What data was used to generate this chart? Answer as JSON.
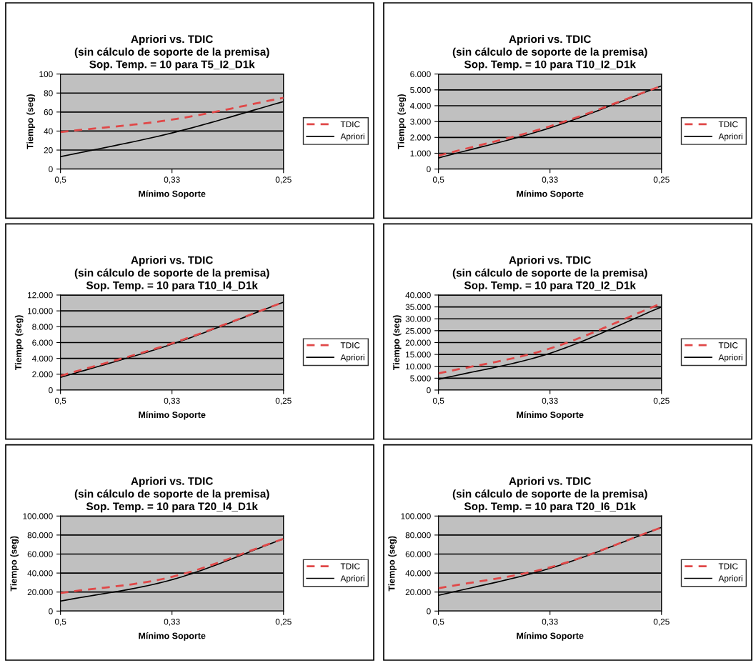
{
  "chart_data": [
    {
      "type": "line",
      "title": "Apriori vs. TDIC\n(sin cálculo de soporte de la premisa)\nSop. Temp. = 10 para T5_I2_D1k",
      "xlabel": "Mínimo Soporte",
      "ylabel": "Tiempo (seg)",
      "categories": [
        "0,5",
        "0,33",
        "0,25"
      ],
      "ylim": [
        0,
        100
      ],
      "yticks": [
        0,
        20,
        40,
        60,
        80,
        100
      ],
      "grid": "y",
      "legend": "right",
      "series": [
        {
          "name": "TDIC",
          "color": "#e04848",
          "line_style": "dashed",
          "values": [
            39,
            52,
            75
          ]
        },
        {
          "name": "Apriori",
          "color": "#000000",
          "line_style": "solid",
          "values": [
            13,
            38,
            71
          ]
        }
      ]
    },
    {
      "type": "line",
      "title": "Apriori vs. TDIC\n(sin cálculo de soporte de la premisa)\nSop. Temp. = 10 para T10_I2_D1k",
      "xlabel": "Mínimo Soporte",
      "ylabel": "Tiempo (seg)",
      "categories": [
        "0,5",
        "0,33",
        "0,25"
      ],
      "ylim": [
        0,
        6000
      ],
      "yticks": [
        0,
        {
          "value": 1000,
          "label": "1.000"
        },
        {
          "value": 2000,
          "label": "2.000"
        },
        {
          "value": 3000,
          "label": "3.000"
        },
        {
          "value": 4000,
          "label": "4.000"
        },
        {
          "value": 5000,
          "label": "5.000"
        },
        {
          "value": 6000,
          "label": "6.000"
        }
      ],
      "grid": "y",
      "legend": "right",
      "series": [
        {
          "name": "TDIC",
          "color": "#e04848",
          "line_style": "dashed",
          "values": [
            850,
            2700,
            5250
          ]
        },
        {
          "name": "Apriori",
          "color": "#000000",
          "line_style": "solid",
          "values": [
            700,
            2600,
            5250
          ]
        }
      ]
    },
    {
      "type": "line",
      "title": "Apriori vs. TDIC\n(sin cálculo de soporte de la premisa)\nSop. Temp. = 10 para T10_I4_D1k",
      "xlabel": "Mínimo Soporte",
      "ylabel": "Tiempo (seg)",
      "categories": [
        "0,5",
        "0,33",
        "0,25"
      ],
      "ylim": [
        0,
        12000
      ],
      "yticks": [
        0,
        {
          "value": 2000,
          "label": "2.000"
        },
        {
          "value": 4000,
          "label": "4.000"
        },
        {
          "value": 6000,
          "label": "6.000"
        },
        {
          "value": 8000,
          "label": "8.000"
        },
        {
          "value": 10000,
          "label": "10.000"
        },
        {
          "value": 12000,
          "label": "12.000"
        }
      ],
      "grid": "y",
      "legend": "right",
      "series": [
        {
          "name": "TDIC",
          "color": "#e04848",
          "line_style": "dashed",
          "values": [
            1800,
            5900,
            11100
          ]
        },
        {
          "name": "Apriori",
          "color": "#000000",
          "line_style": "solid",
          "values": [
            1600,
            5800,
            11100
          ]
        }
      ]
    },
    {
      "type": "line",
      "title": "Apriori vs. TDIC\n(sin cálculo de soporte de la premisa)\nSop. Temp. = 10 para T20_I2_D1k",
      "xlabel": "Mínimo Soporte",
      "ylabel": "Tiempo (seg)",
      "categories": [
        "0,5",
        "0,33",
        "0,25"
      ],
      "ylim": [
        0,
        40000
      ],
      "yticks": [
        0,
        {
          "value": 5000,
          "label": "5.000"
        },
        {
          "value": 10000,
          "label": "10.000"
        },
        {
          "value": 15000,
          "label": "15.000"
        },
        {
          "value": 20000,
          "label": "20.000"
        },
        {
          "value": 25000,
          "label": "25.000"
        },
        {
          "value": 30000,
          "label": "30.000"
        },
        {
          "value": 35000,
          "label": "35.000"
        },
        {
          "value": 40000,
          "label": "40.000"
        }
      ],
      "grid": "y",
      "legend": "right",
      "series": [
        {
          "name": "TDIC",
          "color": "#e04848",
          "line_style": "dashed",
          "values": [
            7000,
            17500,
            36500
          ]
        },
        {
          "name": "Apriori",
          "color": "#000000",
          "line_style": "solid",
          "values": [
            4500,
            15500,
            35000
          ]
        }
      ]
    },
    {
      "type": "line",
      "title": "Apriori vs. TDIC\n(sin cálculo de soporte de la premisa)\nSop. Temp. = 10 para T20_I4_D1k",
      "xlabel": "Mínimo Soporte",
      "ylabel": "Tiempo (seg)",
      "categories": [
        "0,5",
        "0,33",
        "0,25"
      ],
      "ylim": [
        0,
        100000
      ],
      "yticks": [
        0,
        {
          "value": 20000,
          "label": "20.000"
        },
        {
          "value": 40000,
          "label": "40.000"
        },
        {
          "value": 60000,
          "label": "60.000"
        },
        {
          "value": 80000,
          "label": "80.000"
        },
        {
          "value": 100000,
          "label": "100.000"
        }
      ],
      "grid": "y",
      "legend": "right",
      "series": [
        {
          "name": "TDIC",
          "color": "#e04848",
          "line_style": "dashed",
          "values": [
            19000,
            36000,
            76000
          ]
        },
        {
          "name": "Apriori",
          "color": "#000000",
          "line_style": "solid",
          "values": [
            10500,
            33000,
            76000
          ]
        }
      ]
    },
    {
      "type": "line",
      "title": "Apriori vs. TDIC\n(sin cálculo de soporte de la premisa)\nSop. Temp. = 10 para T20_I6_D1k",
      "xlabel": "Mínimo Soporte",
      "ylabel": "Tiempo (seg)",
      "categories": [
        "0,5",
        "0,33",
        "0,25"
      ],
      "ylim": [
        0,
        100000
      ],
      "yticks": [
        0,
        {
          "value": 20000,
          "label": "20.000"
        },
        {
          "value": 40000,
          "label": "40.000"
        },
        {
          "value": 60000,
          "label": "60.000"
        },
        {
          "value": 80000,
          "label": "80.000"
        },
        {
          "value": 100000,
          "label": "100.000"
        }
      ],
      "grid": "y",
      "legend": "right",
      "series": [
        {
          "name": "TDIC",
          "color": "#e04848",
          "line_style": "dashed",
          "values": [
            24000,
            46000,
            88000
          ]
        },
        {
          "name": "Apriori",
          "color": "#000000",
          "line_style": "solid",
          "values": [
            16500,
            45000,
            88000
          ]
        }
      ]
    }
  ]
}
